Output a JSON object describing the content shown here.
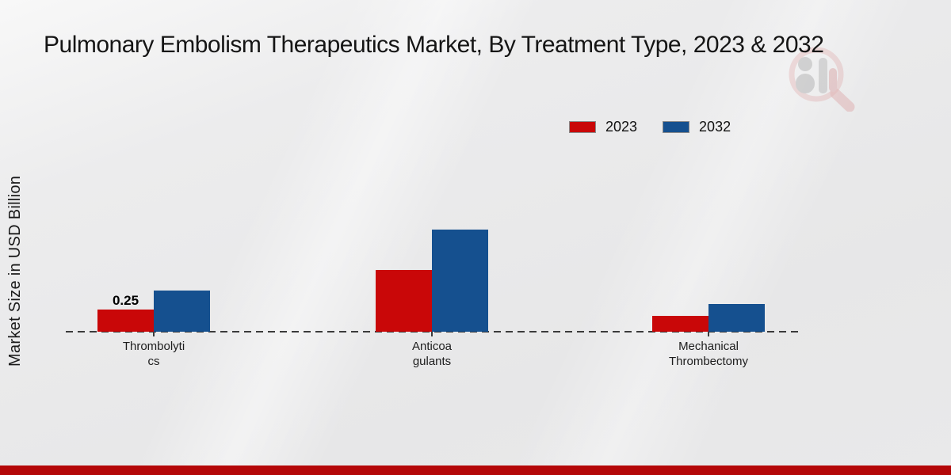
{
  "title": "Pulmonary Embolism Therapeutics Market, By Treatment Type, 2023 & 2032",
  "y_axis_label": "Market Size in USD Billion",
  "legend": {
    "items": [
      {
        "label": "2023",
        "color": "#c90708"
      },
      {
        "label": "2032",
        "color": "#15508f"
      }
    ],
    "position": "top-right"
  },
  "colors": {
    "series_2023": "#c90708",
    "series_2032": "#15508f",
    "bottom_accent_bar": "#b40708",
    "baseline": "#3b3b3b",
    "background": "#e9e9ea"
  },
  "watermark_icon": "magnifier-person-chart-logo",
  "chart_data": {
    "type": "bar",
    "title": "Pulmonary Embolism Therapeutics Market, By Treatment Type, 2023 & 2032",
    "xlabel": "",
    "ylabel": "Market Size in USD Billion",
    "categories": [
      "Thrombolytics",
      "Anticoagulants",
      "Mechanical Thrombectomy"
    ],
    "category_label_lines": [
      [
        "Thrombolyti",
        "cs"
      ],
      [
        "Anticoa",
        "gulants"
      ],
      [
        "Mechanical",
        "Thrombectomy"
      ]
    ],
    "series": [
      {
        "name": "2023",
        "color": "#c90708",
        "values": [
          0.25,
          0.7,
          0.18
        ]
      },
      {
        "name": "2032",
        "color": "#15508f",
        "values": [
          0.46,
          1.15,
          0.31
        ]
      }
    ],
    "annotations": [
      {
        "series": "2023",
        "category": "Thrombolytics",
        "text": "0.25"
      }
    ],
    "ylim": [
      0,
      1.4
    ],
    "grid": false,
    "y_axis_ticks_visible": false,
    "baseline_style": "dashed",
    "legend_position": "top-right"
  }
}
